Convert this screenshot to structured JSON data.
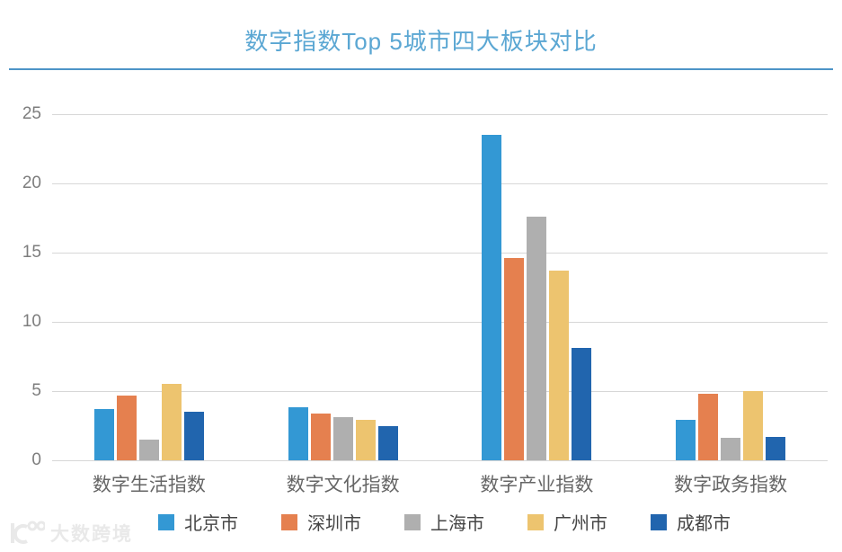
{
  "title": "数字指数Top 5城市四大板块对比",
  "accent_color": "#5ba7d3",
  "watermark": {
    "text": "大数跨境"
  },
  "chart_data": {
    "type": "bar",
    "title": "数字指数Top 5城市四大板块对比",
    "categories": [
      "数字生活指数",
      "数字文化指数",
      "数字产业指数",
      "数字政务指数"
    ],
    "series": [
      {
        "name": "北京市",
        "color": "#3398d4",
        "values": [
          3.7,
          3.8,
          23.5,
          2.9
        ]
      },
      {
        "name": "深圳市",
        "color": "#e5804f",
        "values": [
          4.7,
          3.4,
          14.6,
          4.8
        ]
      },
      {
        "name": "上海市",
        "color": "#afafaf",
        "values": [
          1.5,
          3.1,
          17.6,
          1.6
        ]
      },
      {
        "name": "广州市",
        "color": "#edc46f",
        "values": [
          5.5,
          2.9,
          13.7,
          5.0
        ]
      },
      {
        "name": "成都市",
        "color": "#2165ae",
        "values": [
          3.5,
          2.5,
          8.1,
          1.7
        ]
      }
    ],
    "xlabel": "",
    "ylabel": "",
    "ylim": [
      0,
      25
    ],
    "yticks": [
      0,
      5,
      10,
      15,
      20,
      25
    ],
    "grid": true,
    "legend_position": "bottom"
  }
}
